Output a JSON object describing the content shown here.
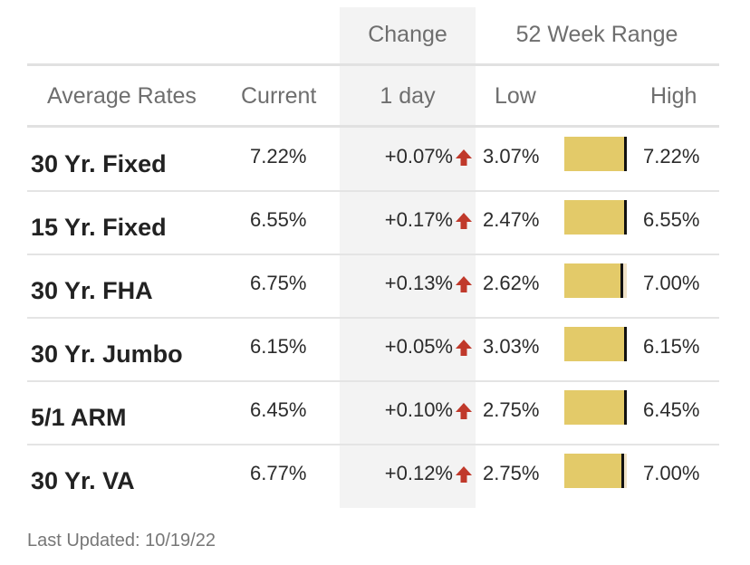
{
  "header": {
    "group_change": "Change",
    "group_range": "52 Week Range",
    "col_average_rates": "Average Rates",
    "col_current": "Current",
    "col_1day": "1 day",
    "col_low": "Low",
    "col_high": "High"
  },
  "colors": {
    "arrow_up": "#c0392b",
    "bar_fill": "#e3ca69",
    "bar_track": "#f0e2c7",
    "marker": "#111111"
  },
  "rows": [
    {
      "name": "30 Yr. Fixed",
      "current": "7.22%",
      "change": "+0.07%",
      "direction": "up",
      "low": "3.07%",
      "high": "7.22%",
      "range_position": 1.0
    },
    {
      "name": "15 Yr. Fixed",
      "current": "6.55%",
      "change": "+0.17%",
      "direction": "up",
      "low": "2.47%",
      "high": "6.55%",
      "range_position": 1.0
    },
    {
      "name": "30 Yr. FHA",
      "current": "6.75%",
      "change": "+0.13%",
      "direction": "up",
      "low": "2.62%",
      "high": "7.00%",
      "range_position": 0.94
    },
    {
      "name": "30 Yr. Jumbo",
      "current": "6.15%",
      "change": "+0.05%",
      "direction": "up",
      "low": "3.03%",
      "high": "6.15%",
      "range_position": 1.0
    },
    {
      "name": "5/1 ARM",
      "current": "6.45%",
      "change": "+0.10%",
      "direction": "up",
      "low": "2.75%",
      "high": "6.45%",
      "range_position": 1.0
    },
    {
      "name": "30 Yr. VA",
      "current": "6.77%",
      "change": "+0.12%",
      "direction": "up",
      "low": "2.75%",
      "high": "7.00%",
      "range_position": 0.95
    }
  ],
  "footer": {
    "last_updated": "Last Updated: 10/19/22"
  }
}
